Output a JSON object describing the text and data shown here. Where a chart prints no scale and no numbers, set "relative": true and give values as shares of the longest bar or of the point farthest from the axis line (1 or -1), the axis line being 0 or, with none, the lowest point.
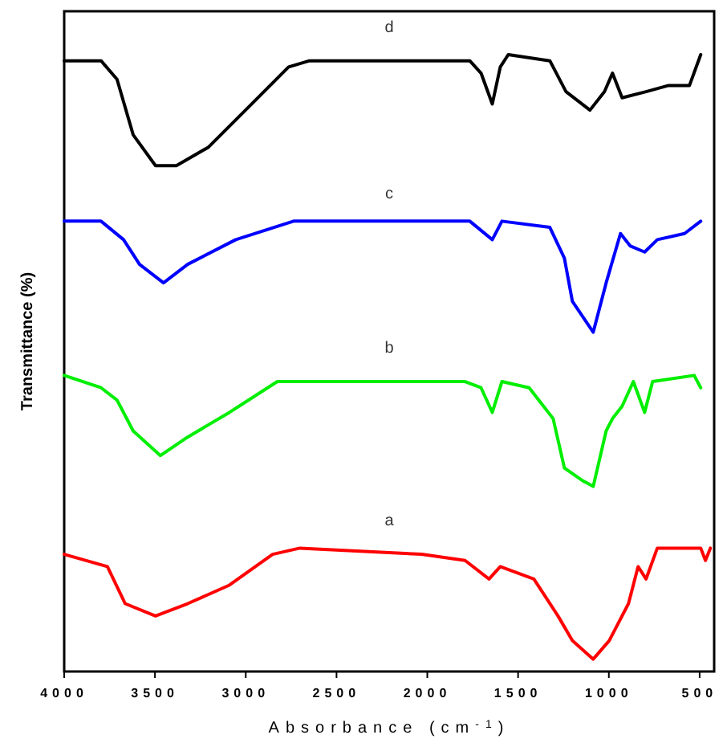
{
  "chart_data": {
    "type": "line",
    "relative": true,
    "xlabel": "Absorbance (cm$^{-1}$)",
    "ylabel": "Transmittance (%)",
    "xlim": [
      4000,
      420
    ],
    "xticks": [
      4000,
      3500,
      3000,
      2500,
      2000,
      1500,
      1000,
      500
    ],
    "grid": false,
    "legend": false,
    "marker": "none",
    "line_style": "solid",
    "series": [
      {
        "name": "a",
        "color": "#ff0000",
        "x": [
          4000,
          3762,
          3664,
          3497,
          3320,
          3090,
          2852,
          2702,
          2031,
          1792,
          1660,
          1598,
          1413,
          1280,
          1201,
          1086,
          998,
          892,
          839,
          795,
          733,
          494,
          468,
          441
        ],
        "values": [
          0.19,
          0.17,
          0.11,
          0.09,
          0.11,
          0.14,
          0.19,
          0.2,
          0.19,
          0.18,
          0.15,
          0.17,
          0.15,
          0.09,
          0.05,
          0.02,
          0.05,
          0.11,
          0.17,
          0.15,
          0.2,
          0.2,
          0.18,
          0.2
        ]
      },
      {
        "name": "b",
        "color": "#00ee00",
        "x": [
          4000,
          3797,
          3709,
          3620,
          3470,
          3320,
          3090,
          2826,
          1792,
          1704,
          1642,
          1589,
          1439,
          1307,
          1245,
          1148,
          1086,
          1015,
          980,
          927,
          865,
          803,
          759,
          530,
          494
        ],
        "values": [
          0.48,
          0.46,
          0.44,
          0.39,
          0.35,
          0.38,
          0.42,
          0.47,
          0.47,
          0.46,
          0.42,
          0.47,
          0.46,
          0.41,
          0.33,
          0.31,
          0.3,
          0.39,
          0.41,
          0.43,
          0.47,
          0.42,
          0.47,
          0.48,
          0.46
        ]
      },
      {
        "name": "c",
        "color": "#0000ff",
        "x": [
          4000,
          3797,
          3673,
          3585,
          3453,
          3320,
          3055,
          2737,
          1766,
          1642,
          1589,
          1325,
          1245,
          1201,
          1086,
          1015,
          936,
          883,
          803,
          733,
          583,
          494
        ],
        "values": [
          0.73,
          0.73,
          0.7,
          0.66,
          0.63,
          0.66,
          0.7,
          0.73,
          0.73,
          0.7,
          0.73,
          0.72,
          0.67,
          0.6,
          0.55,
          0.63,
          0.71,
          0.69,
          0.68,
          0.7,
          0.71,
          0.73
        ]
      },
      {
        "name": "d",
        "color": "#000000",
        "x": [
          4000,
          3797,
          3709,
          3620,
          3497,
          3382,
          3205,
          2967,
          2764,
          2649,
          1766,
          1704,
          1642,
          1598,
          1554,
          1325,
          1236,
          1104,
          1024,
          980,
          927,
          795,
          671,
          556,
          494
        ],
        "values": [
          0.99,
          0.99,
          0.96,
          0.87,
          0.82,
          0.82,
          0.85,
          0.92,
          0.98,
          0.99,
          0.99,
          0.97,
          0.92,
          0.98,
          1,
          0.99,
          0.94,
          0.91,
          0.94,
          0.97,
          0.93,
          0.94,
          0.95,
          0.95,
          1
        ]
      }
    ]
  }
}
